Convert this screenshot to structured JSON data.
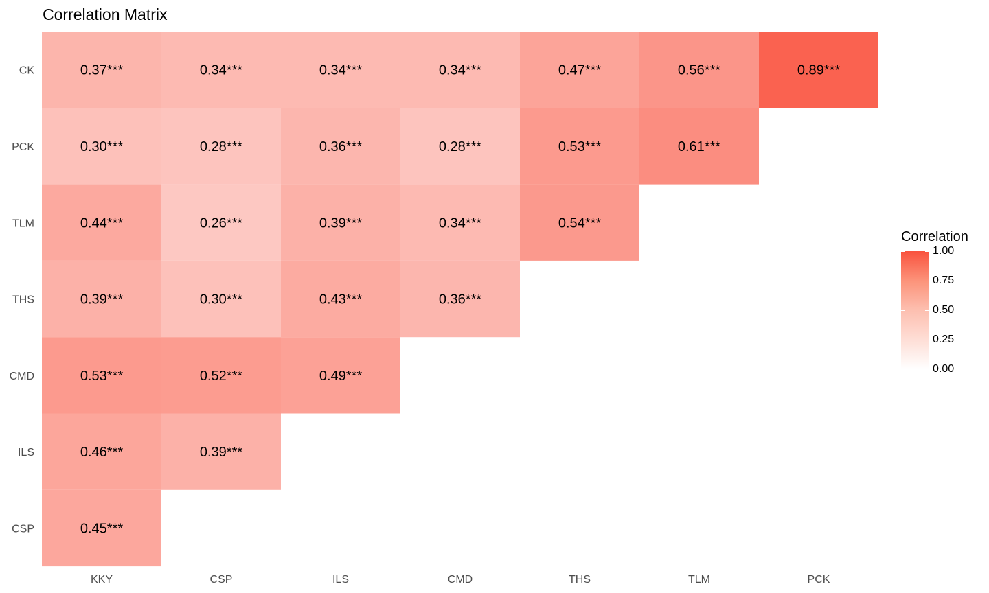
{
  "chart_data": {
    "type": "heatmap",
    "title": "Correlation Matrix",
    "x_categories": [
      "KKY",
      "CSP",
      "ILS",
      "CMD",
      "THS",
      "TLM",
      "PCK"
    ],
    "y_categories": [
      "CK",
      "PCK",
      "TLM",
      "THS",
      "CMD",
      "ILS",
      "CSP"
    ],
    "cells": [
      {
        "x": "KKY",
        "y": "CK",
        "value": 0.37,
        "label": "0.37***"
      },
      {
        "x": "CSP",
        "y": "CK",
        "value": 0.34,
        "label": "0.34***"
      },
      {
        "x": "ILS",
        "y": "CK",
        "value": 0.34,
        "label": "0.34***"
      },
      {
        "x": "CMD",
        "y": "CK",
        "value": 0.34,
        "label": "0.34***"
      },
      {
        "x": "THS",
        "y": "CK",
        "value": 0.47,
        "label": "0.47***"
      },
      {
        "x": "TLM",
        "y": "CK",
        "value": 0.56,
        "label": "0.56***"
      },
      {
        "x": "PCK",
        "y": "CK",
        "value": 0.89,
        "label": "0.89***"
      },
      {
        "x": "KKY",
        "y": "PCK",
        "value": 0.3,
        "label": "0.30***"
      },
      {
        "x": "CSP",
        "y": "PCK",
        "value": 0.28,
        "label": "0.28***"
      },
      {
        "x": "ILS",
        "y": "PCK",
        "value": 0.36,
        "label": "0.36***"
      },
      {
        "x": "CMD",
        "y": "PCK",
        "value": 0.28,
        "label": "0.28***"
      },
      {
        "x": "THS",
        "y": "PCK",
        "value": 0.53,
        "label": "0.53***"
      },
      {
        "x": "TLM",
        "y": "PCK",
        "value": 0.61,
        "label": "0.61***"
      },
      {
        "x": "KKY",
        "y": "TLM",
        "value": 0.44,
        "label": "0.44***"
      },
      {
        "x": "CSP",
        "y": "TLM",
        "value": 0.26,
        "label": "0.26***"
      },
      {
        "x": "ILS",
        "y": "TLM",
        "value": 0.39,
        "label": "0.39***"
      },
      {
        "x": "CMD",
        "y": "TLM",
        "value": 0.34,
        "label": "0.34***"
      },
      {
        "x": "THS",
        "y": "TLM",
        "value": 0.54,
        "label": "0.54***"
      },
      {
        "x": "KKY",
        "y": "THS",
        "value": 0.39,
        "label": "0.39***"
      },
      {
        "x": "CSP",
        "y": "THS",
        "value": 0.3,
        "label": "0.30***"
      },
      {
        "x": "ILS",
        "y": "THS",
        "value": 0.43,
        "label": "0.43***"
      },
      {
        "x": "CMD",
        "y": "THS",
        "value": 0.36,
        "label": "0.36***"
      },
      {
        "x": "KKY",
        "y": "CMD",
        "value": 0.53,
        "label": "0.53***"
      },
      {
        "x": "CSP",
        "y": "CMD",
        "value": 0.52,
        "label": "0.52***"
      },
      {
        "x": "ILS",
        "y": "CMD",
        "value": 0.49,
        "label": "0.49***"
      },
      {
        "x": "KKY",
        "y": "ILS",
        "value": 0.46,
        "label": "0.46***"
      },
      {
        "x": "CSP",
        "y": "ILS",
        "value": 0.39,
        "label": "0.39***"
      },
      {
        "x": "KKY",
        "y": "CSP",
        "value": 0.45,
        "label": "0.45***"
      }
    ],
    "legend": {
      "title": "Correlation",
      "position": "right",
      "ticks": [
        "1.00",
        "0.75",
        "0.50",
        "0.25",
        "0.00"
      ],
      "range": [
        0,
        1
      ],
      "low_color": "#ffffff",
      "high_color": "#f9523e"
    },
    "grid": false
  }
}
